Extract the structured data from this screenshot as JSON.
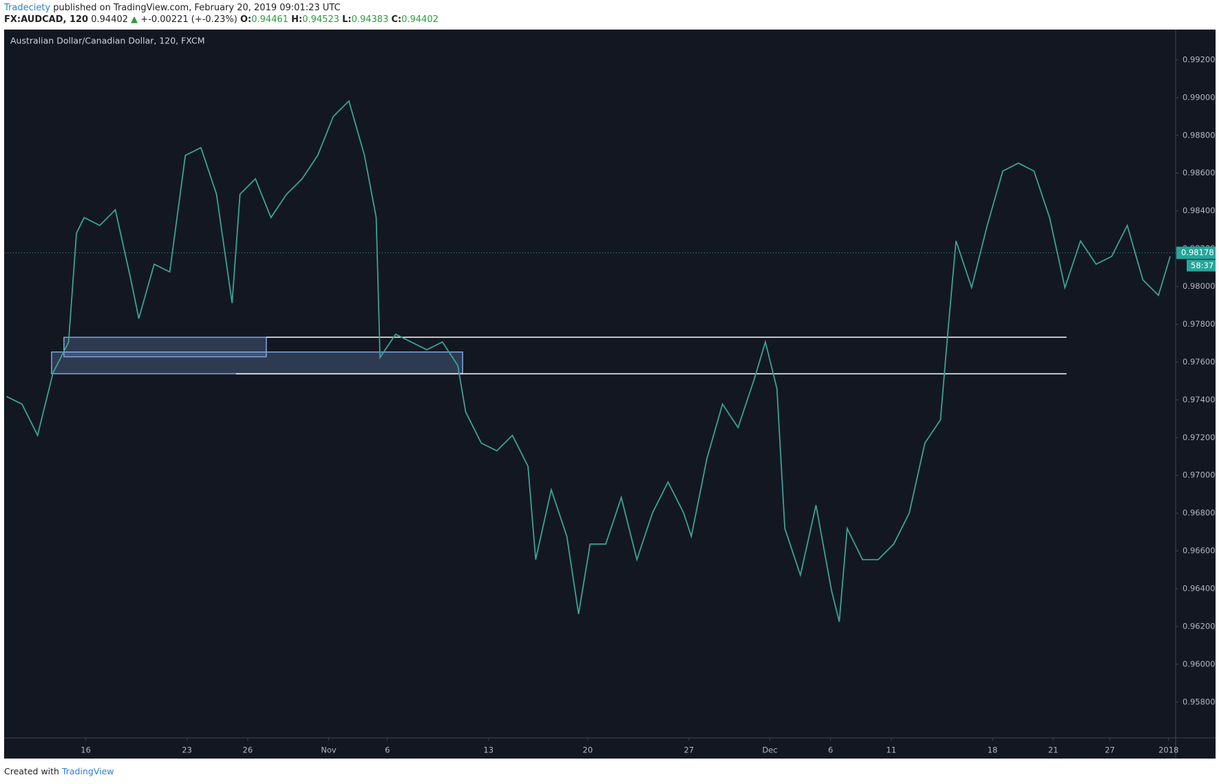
{
  "header": {
    "author": "Tradeciety",
    "published": "published on TradingView.com, February 20, 2019 09:01:23 UTC"
  },
  "symbol": {
    "name": "FX:AUDCAD, 120",
    "last": "0.94402",
    "change": "+-0.00221 (+-0.23%)",
    "open_label": "O:",
    "open": "0.94461",
    "high_label": "H:",
    "high": "0.94523",
    "low_label": "L:",
    "low": "0.94383",
    "close_label": "C:",
    "close": "0.94402"
  },
  "footer": {
    "created": "Created with",
    "brand": "TradingView"
  },
  "chart_data": {
    "type": "line",
    "title": "Australian Dollar/Canadian Dollar, 120, FXCM",
    "color": "#3aa394",
    "x": [
      0.08,
      0.85,
      1.62,
      2.38,
      3.15,
      3.54,
      3.92,
      4.69,
      5.46,
      6.23,
      6.62,
      7.38,
      8.15,
      8.92,
      9.69,
      10.46,
      11.23,
      11.62,
      12.38,
      13.15,
      13.92,
      14.69,
      15.46,
      16.23,
      17.0,
      17.77,
      18.35,
      18.54,
      19.31,
      20.08,
      20.85,
      21.62,
      22.38,
      22.77,
      23.54,
      24.31,
      25.08,
      25.85,
      26.23,
      27.0,
      27.77,
      28.35,
      28.92,
      29.69,
      30.46,
      31.23,
      32.0,
      32.77,
      33.54,
      33.92,
      34.69,
      35.46,
      36.23,
      37.0,
      37.58,
      38.15,
      38.54,
      39.31,
      40.08,
      40.85,
      41.23,
      41.62,
      42.38,
      43.15,
      43.92,
      44.69,
      45.46,
      46.23,
      46.62,
      47.0,
      47.77,
      48.54,
      49.31,
      50.08,
      50.85,
      51.62,
      52.38,
      53.15,
      53.92,
      54.69,
      55.46,
      56.23,
      57.0,
      57.58
    ],
    "series": [
      {
        "name": "AUDCAD",
        "values": [
          0.97418,
          0.97377,
          0.97212,
          0.97542,
          0.97706,
          0.98282,
          0.98365,
          0.98323,
          0.98406,
          0.98035,
          0.9783,
          0.98118,
          0.98077,
          0.98694,
          0.98735,
          0.98488,
          0.97912,
          0.98488,
          0.9857,
          0.98365,
          0.98488,
          0.9857,
          0.98694,
          0.989,
          0.98982,
          0.98694,
          0.98365,
          0.97624,
          0.97747,
          0.97706,
          0.97665,
          0.97706,
          0.97582,
          0.97336,
          0.97171,
          0.9713,
          0.97212,
          0.97048,
          0.96554,
          0.96924,
          0.96677,
          0.96266,
          0.96636,
          0.96636,
          0.96883,
          0.96554,
          0.96801,
          0.96965,
          0.96801,
          0.96677,
          0.97089,
          0.97377,
          0.97253,
          0.975,
          0.97706,
          0.97459,
          0.96719,
          0.96472,
          0.96842,
          0.96389,
          0.96225,
          0.96719,
          0.96554,
          0.96554,
          0.96636,
          0.96801,
          0.97171,
          0.97294,
          0.97788,
          0.98241,
          0.97994,
          0.98323,
          0.98611,
          0.98653,
          0.98611,
          0.98365,
          0.97994,
          0.98241,
          0.98118,
          0.98159,
          0.98323,
          0.98035,
          0.97953,
          0.98159
        ]
      }
    ],
    "xlim": [
      0,
      57.85
    ],
    "xticks": [
      {
        "value": 4.0,
        "label": "16"
      },
      {
        "value": 9.0,
        "label": "23"
      },
      {
        "value": 12.0,
        "label": "26"
      },
      {
        "value": 16.0,
        "label": "Nov"
      },
      {
        "value": 18.9,
        "label": "6"
      },
      {
        "value": 23.9,
        "label": "13"
      },
      {
        "value": 28.8,
        "label": "20"
      },
      {
        "value": 33.8,
        "label": "27"
      },
      {
        "value": 37.8,
        "label": "Dec"
      },
      {
        "value": 40.8,
        "label": "6"
      },
      {
        "value": 43.8,
        "label": "11"
      },
      {
        "value": 48.8,
        "label": "18"
      },
      {
        "value": 51.8,
        "label": "21"
      },
      {
        "value": 54.6,
        "label": "27"
      },
      {
        "value": 57.5,
        "label": "2018"
      }
    ],
    "ylim": [
      0.9561,
      0.9936
    ],
    "yticks": [
      {
        "value": 0.958,
        "label": "0.95800"
      },
      {
        "value": 0.96,
        "label": "0.96000"
      },
      {
        "value": 0.962,
        "label": "0.96200"
      },
      {
        "value": 0.964,
        "label": "0.96400"
      },
      {
        "value": 0.966,
        "label": "0.96600"
      },
      {
        "value": 0.968,
        "label": "0.96800"
      },
      {
        "value": 0.97,
        "label": "0.97000"
      },
      {
        "value": 0.972,
        "label": "0.97200"
      },
      {
        "value": 0.974,
        "label": "0.97400"
      },
      {
        "value": 0.976,
        "label": "0.97600"
      },
      {
        "value": 0.978,
        "label": "0.97800"
      },
      {
        "value": 0.98,
        "label": "0.98000"
      },
      {
        "value": 0.982,
        "label": "0.98200"
      },
      {
        "value": 0.984,
        "label": "0.98400"
      },
      {
        "value": 0.986,
        "label": "0.98600"
      },
      {
        "value": 0.988,
        "label": "0.98800"
      },
      {
        "value": 0.99,
        "label": "0.99000"
      },
      {
        "value": 0.992,
        "label": "0.99200"
      }
    ],
    "zones": [
      {
        "from": 0.97731,
        "to": 0.97628,
        "start": 2.92,
        "end": 12.92
      },
      {
        "from": 0.97653,
        "to": 0.97538,
        "start": 2.31,
        "end": 22.62
      }
    ],
    "levels": [
      {
        "value": 0.97731,
        "start": 12.92,
        "end": 52.46
      },
      {
        "value": 0.97538,
        "start": 11.42,
        "end": 52.46
      }
    ],
    "last_price": {
      "value": 0.98178,
      "label": "0.98178"
    },
    "countdown": "58:37"
  }
}
